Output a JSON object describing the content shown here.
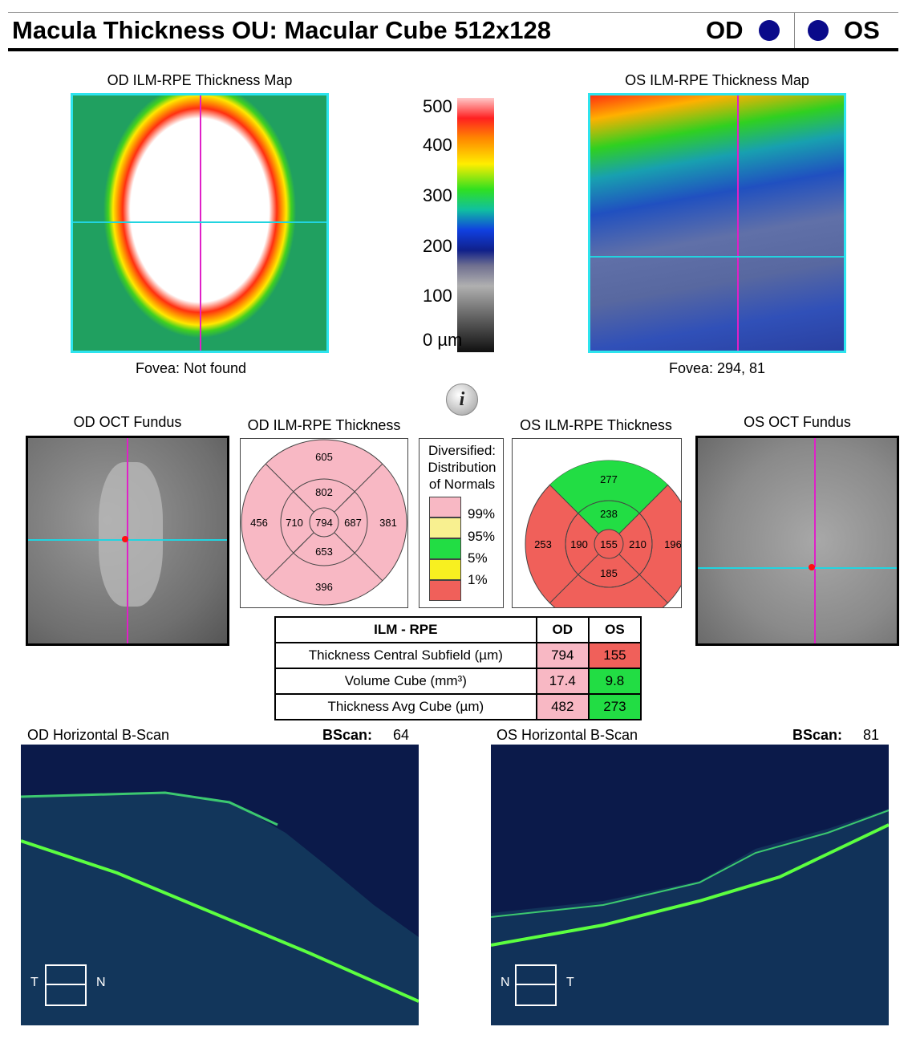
{
  "header": {
    "title": "Macula Thickness OU: Macular Cube 512x128",
    "od_label": "OD",
    "os_label": "OS",
    "eye_dot_color": "#0a0a8a"
  },
  "thickness_maps": {
    "od_title": "OD ILM-RPE Thickness Map",
    "os_title": "OS ILM-RPE Thickness Map",
    "od_fovea": "Fovea: Not found",
    "os_fovea": "Fovea: 294, 81"
  },
  "color_scale": {
    "labels": [
      "500",
      "400",
      "300",
      "200",
      "100",
      "0 µm"
    ]
  },
  "info_icon": "i",
  "fundus": {
    "od_title": "OD OCT Fundus",
    "os_title": "OS OCT Fundus"
  },
  "etdrs": {
    "od_title": "OD ILM-RPE Thickness",
    "os_title": "OS ILM-RPE Thickness",
    "od": {
      "center": "794",
      "inner_superior": "802",
      "inner_nasal": "687",
      "inner_inferior": "653",
      "inner_temporal": "710",
      "outer_superior": "605",
      "outer_nasal": "381",
      "outer_inferior": "396",
      "outer_temporal": "456"
    },
    "os": {
      "center": "155",
      "inner_superior": "238",
      "inner_nasal": "210",
      "inner_inferior": "185",
      "inner_temporal": "190",
      "outer_superior": "277",
      "outer_nasal": "196",
      "outer_inferior": "",
      "outer_temporal": "253"
    },
    "colors": {
      "pink": "#f8b8c4",
      "green": "#22dd44",
      "red": "#f0605a"
    }
  },
  "legend": {
    "title_lines": [
      "Diversified:",
      "Distribution",
      "of Normals"
    ],
    "items": [
      {
        "label": "99%",
        "color": "#f8b8c4"
      },
      {
        "label": "95%",
        "color": "#f8f090"
      },
      {
        "label": "5%",
        "color": "#22dd44"
      },
      {
        "label": "1%",
        "color": "#f8f020"
      },
      {
        "label": "",
        "color": "#f0605a"
      }
    ]
  },
  "summary_table": {
    "headers": [
      "ILM - RPE",
      "OD",
      "OS"
    ],
    "rows": [
      {
        "label": "Thickness Central Subfield (µm)",
        "od": "794",
        "os": "155",
        "od_color": "#f8b8c4",
        "os_color": "#f0605a"
      },
      {
        "label": "Volume Cube (mm³)",
        "od": "17.4",
        "os": "9.8",
        "od_color": "#f8b8c4",
        "os_color": "#22dd44"
      },
      {
        "label": "Thickness Avg Cube (µm)",
        "od": "482",
        "os": "273",
        "od_color": "#f8b8c4",
        "os_color": "#22dd44"
      }
    ]
  },
  "bscans": {
    "od_title": "OD Horizontal B-Scan",
    "os_title": "OS Horizontal B-Scan",
    "bscan_label": "BScan:",
    "od_number": "64",
    "os_number": "81",
    "od_dir_left": "T",
    "od_dir_right": "N",
    "os_dir_left": "N",
    "os_dir_right": "T"
  }
}
